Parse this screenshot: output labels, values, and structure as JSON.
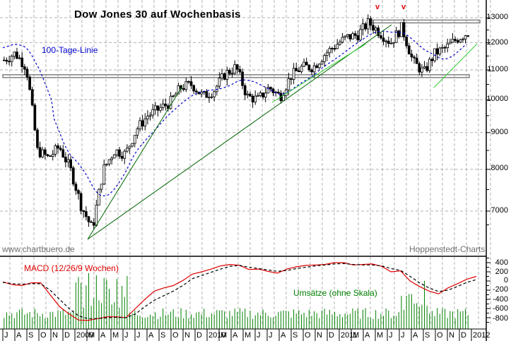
{
  "chart_data": [
    {
      "type": "candlestick",
      "title": "Dow Jones 30 auf Wochenbasis",
      "xlabel": "",
      "ylabel": "",
      "y_scale": "log",
      "ylim": [
        6400,
        13300
      ],
      "y_ticks": [
        7000,
        8000,
        9000,
        10000,
        11000,
        12000,
        13000
      ],
      "x_period": "Jul 2008 – Jan 2012 (weekly)",
      "grid": true,
      "annotations": [
        {
          "type": "moving_average",
          "label": "100-Tage-Linie",
          "style": "blue dashed"
        },
        {
          "type": "horizontal_zone",
          "value": 12850,
          "desc": "resistance top"
        },
        {
          "type": "horizontal_zone",
          "value": 10800,
          "desc": "support/resistance"
        },
        {
          "type": "trendline",
          "from": [
            "2009-03",
            6550
          ],
          "to": [
            "2010-02",
            10100
          ],
          "color": "dark green"
        },
        {
          "type": "trendline",
          "from": [
            "2009-03",
            6550
          ],
          "to": [
            "2011-05",
            12700
          ],
          "color": "dark green"
        },
        {
          "type": "trendline",
          "from": [
            "2010-07",
            9700
          ],
          "to": [
            "2011-04",
            12300
          ],
          "color": "light green"
        },
        {
          "type": "trendline",
          "from": [
            "2011-10",
            10400
          ],
          "to": [
            "2012-01",
            11900
          ],
          "color": "light green"
        },
        {
          "type": "marker",
          "label": "v",
          "at": "2011-05",
          "color": "red"
        },
        {
          "type": "marker",
          "label": "v",
          "at": "2011-07",
          "color": "red"
        }
      ],
      "approx_weekly_close_path": [
        {
          "date": "2008-07",
          "value": 11350
        },
        {
          "date": "2008-08",
          "value": 11600
        },
        {
          "date": "2008-09",
          "value": 11100
        },
        {
          "date": "2008-10",
          "value": 8500
        },
        {
          "date": "2008-11",
          "value": 8300
        },
        {
          "date": "2008-12",
          "value": 8600
        },
        {
          "date": "2009-01",
          "value": 8000
        },
        {
          "date": "2009-02",
          "value": 7100
        },
        {
          "date": "2009-03",
          "value": 6600
        },
        {
          "date": "2009-04",
          "value": 8000
        },
        {
          "date": "2009-05",
          "value": 8500
        },
        {
          "date": "2009-06",
          "value": 8400
        },
        {
          "date": "2009-07",
          "value": 9100
        },
        {
          "date": "2009-08",
          "value": 9500
        },
        {
          "date": "2009-09",
          "value": 9700
        },
        {
          "date": "2009-10",
          "value": 9900
        },
        {
          "date": "2009-11",
          "value": 10400
        },
        {
          "date": "2009-12",
          "value": 10500
        },
        {
          "date": "2010-01",
          "value": 10100
        },
        {
          "date": "2010-02",
          "value": 10300
        },
        {
          "date": "2010-03",
          "value": 10850
        },
        {
          "date": "2010-04",
          "value": 11100
        },
        {
          "date": "2010-05",
          "value": 10100
        },
        {
          "date": "2010-06",
          "value": 10000
        },
        {
          "date": "2010-07",
          "value": 10400
        },
        {
          "date": "2010-08",
          "value": 10100
        },
        {
          "date": "2010-09",
          "value": 10800
        },
        {
          "date": "2010-10",
          "value": 11100
        },
        {
          "date": "2010-11",
          "value": 11100
        },
        {
          "date": "2010-12",
          "value": 11550
        },
        {
          "date": "2011-01",
          "value": 11900
        },
        {
          "date": "2011-02",
          "value": 12200
        },
        {
          "date": "2011-03",
          "value": 12300
        },
        {
          "date": "2011-04",
          "value": 12800
        },
        {
          "date": "2011-05",
          "value": 12400
        },
        {
          "date": "2011-06",
          "value": 12000
        },
        {
          "date": "2011-07",
          "value": 12600
        },
        {
          "date": "2011-08",
          "value": 11300
        },
        {
          "date": "2011-09",
          "value": 10900
        },
        {
          "date": "2011-10",
          "value": 11600
        },
        {
          "date": "2011-11",
          "value": 11800
        },
        {
          "date": "2011-12",
          "value": 12150
        },
        {
          "date": "2012-01",
          "value": 12400
        }
      ]
    },
    {
      "type": "line",
      "title": "MACD (12/26/9 Wochen)",
      "ylim": [
        -900,
        450
      ],
      "y_ticks": [
        400,
        200,
        0,
        -200,
        -400,
        -600,
        -800
      ],
      "series": [
        {
          "name": "MACD",
          "color": "#e00000",
          "style": "solid",
          "values": [
            -20,
            -80,
            -100,
            -40,
            -40,
            -300,
            -560,
            -720,
            -850,
            -860,
            -820,
            -780,
            -780,
            -800,
            -600,
            -400,
            -220,
            -150,
            -100,
            10,
            150,
            200,
            260,
            330,
            360,
            340,
            250,
            260,
            210,
            170,
            260,
            310,
            340,
            350,
            360,
            400,
            400,
            350,
            360,
            370,
            320,
            200,
            220,
            0,
            -120,
            -220,
            -280,
            -150,
            -60,
            40,
            100
          ]
        },
        {
          "name": "Signal",
          "color": "#000000",
          "style": "dashed",
          "values": [
            -30,
            -60,
            -70,
            -60,
            -60,
            -200,
            -400,
            -600,
            -760,
            -820,
            -820,
            -800,
            -790,
            -800,
            -720,
            -560,
            -420,
            -320,
            -220,
            -100,
            50,
            120,
            190,
            260,
            320,
            340,
            300,
            270,
            240,
            210,
            230,
            270,
            300,
            330,
            350,
            370,
            380,
            360,
            350,
            350,
            330,
            270,
            230,
            100,
            -40,
            -150,
            -230,
            -200,
            -120,
            -30,
            30
          ]
        }
      ]
    },
    {
      "type": "bar",
      "title": "Umsätze (ohne Skala)",
      "desc": "weekly volume bars, green, no scale"
    }
  ],
  "header": {
    "title": "Dow Jones 30 auf Wochenbasis",
    "markers": [
      "v",
      "v"
    ]
  },
  "labels": {
    "moving_average": "100-Tage-Linie",
    "source_left": "www.chartbuero.de",
    "source_right": "Hoppenstedt-Charts",
    "macd": "MACD (12/26/9 Wochen)",
    "volume": "Umsätze (ohne Skala)"
  },
  "y_axis_main": [
    "13000",
    "12000",
    "11000",
    "10000",
    "9000",
    "8000",
    "7000"
  ],
  "y_axis_macd": [
    "400",
    "200",
    "0",
    "-200",
    "-400",
    "-600",
    "-800"
  ],
  "x_axis": [
    "J",
    "A",
    "S",
    "O",
    "N",
    "D",
    "2009",
    "M",
    "A",
    "M",
    "J",
    "J",
    "A",
    "S",
    "O",
    "N",
    "D",
    "2010",
    "M",
    "A",
    "M",
    "J",
    "J",
    "A",
    "S",
    "O",
    "N",
    "D",
    "2011",
    "M",
    "A",
    "M",
    "J",
    "J",
    "A",
    "S",
    "O",
    "N",
    "D",
    "2012"
  ],
  "colors": {
    "macd_line": "#e00000",
    "signal_line": "#000000",
    "volume": "#008000",
    "moving_average": "#0000cc",
    "trend_dark": "#006400",
    "trend_light": "#33cc33",
    "zone": "#808080",
    "grid": "#b0b0b0"
  }
}
